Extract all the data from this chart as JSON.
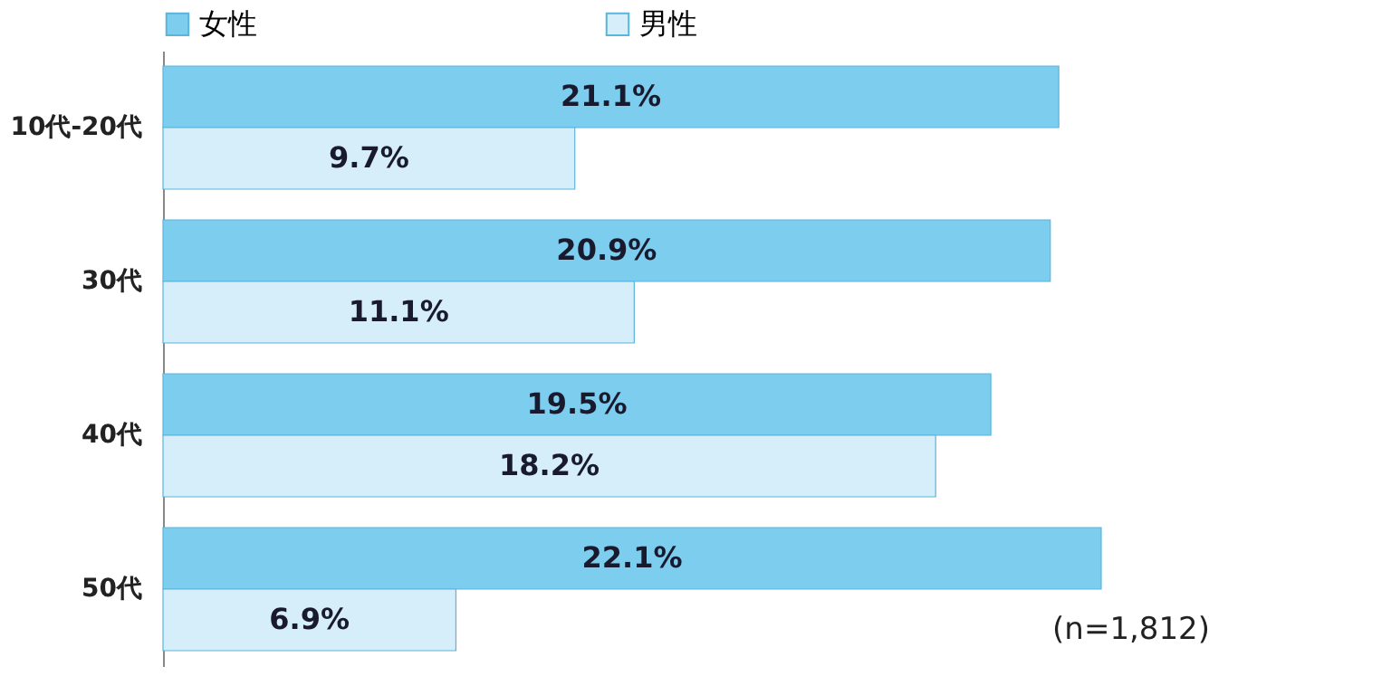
{
  "chart_data": {
    "type": "bar",
    "orientation": "horizontal",
    "categories": [
      "10代-20代",
      "30代",
      "40代",
      "50代"
    ],
    "series": [
      {
        "name": "女性",
        "color": "#7dcdee",
        "values": [
          21.1,
          20.9,
          19.5,
          22.1
        ],
        "value_labels": [
          "21.1%",
          "20.9%",
          "19.5%",
          "22.1%"
        ]
      },
      {
        "name": "男性",
        "color": "#d5eef9",
        "values": [
          9.7,
          11.1,
          18.2,
          6.9
        ],
        "value_labels": [
          "9.7%",
          "11.1%",
          "18.2%",
          "6.9%"
        ]
      }
    ],
    "legend": "top",
    "grid": false,
    "annotations": [
      "(n=1,812)"
    ]
  }
}
